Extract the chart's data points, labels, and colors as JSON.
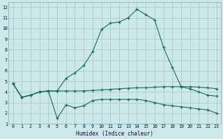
{
  "xlabel": "Humidex (Indice chaleur)",
  "bg_color": "#cce8e8",
  "grid_color": "#aacccc",
  "line_color": "#1a6b5a",
  "xlim": [
    -0.5,
    23.5
  ],
  "ylim": [
    1,
    12.5
  ],
  "xticks": [
    0,
    1,
    2,
    3,
    4,
    5,
    6,
    7,
    8,
    9,
    10,
    11,
    12,
    13,
    14,
    15,
    16,
    17,
    18,
    19,
    20,
    21,
    22,
    23
  ],
  "yticks": [
    1,
    2,
    3,
    4,
    5,
    6,
    7,
    8,
    9,
    10,
    11,
    12
  ],
  "series_peak_x": [
    0,
    1,
    2,
    3,
    4,
    5,
    6,
    7,
    8,
    9,
    10,
    11,
    12,
    13,
    14,
    15,
    16,
    17,
    18,
    19,
    20,
    21,
    22,
    23
  ],
  "series_peak_y": [
    4.8,
    3.5,
    3.7,
    4.0,
    4.1,
    4.1,
    5.3,
    5.8,
    6.5,
    7.8,
    9.9,
    10.5,
    10.6,
    11.0,
    11.8,
    11.3,
    10.8,
    8.2,
    6.3,
    4.5,
    4.3,
    4.0,
    3.7,
    3.6
  ],
  "series_low_x": [
    0,
    1,
    2,
    3,
    4,
    5,
    6,
    7,
    8,
    9,
    10,
    11,
    12,
    13,
    14,
    15,
    16,
    17,
    18,
    19,
    20,
    21,
    22,
    23
  ],
  "series_low_y": [
    4.8,
    3.5,
    3.7,
    4.0,
    4.1,
    1.5,
    2.8,
    2.5,
    2.7,
    3.2,
    3.3,
    3.3,
    3.3,
    3.3,
    3.3,
    3.2,
    3.0,
    2.8,
    2.7,
    2.6,
    2.5,
    2.4,
    2.3,
    2.0
  ],
  "series_flat_x": [
    0,
    1,
    2,
    3,
    4,
    5,
    6,
    7,
    8,
    9,
    10,
    11,
    12,
    13,
    14,
    15,
    16,
    17,
    18,
    19,
    20,
    21,
    22,
    23
  ],
  "series_flat_y": [
    4.8,
    3.5,
    3.7,
    4.0,
    4.1,
    4.1,
    4.1,
    4.1,
    4.1,
    4.15,
    4.2,
    4.25,
    4.3,
    4.35,
    4.4,
    4.4,
    4.45,
    4.5,
    4.5,
    4.5,
    4.5,
    4.45,
    4.4,
    4.3
  ]
}
